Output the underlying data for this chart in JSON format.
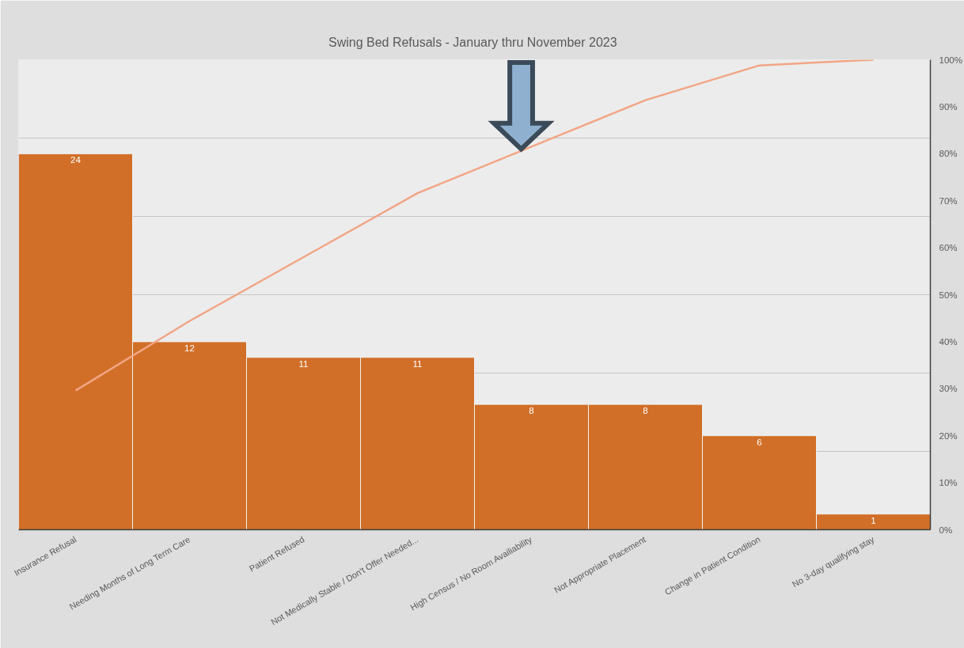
{
  "chart_data": {
    "type": "bar",
    "title": "Swing Bed Refusals  - January thru November 2023",
    "categories": [
      "Insurance Refusal",
      "Needing Months of Long Term Care",
      "Patient Refused",
      "Not Medically Stable / Don't Offer Needed...",
      "High Census / No Room Availiability",
      "Not Appropriate Placement",
      "Change in Patient Condition",
      "No 3-day qualifying stay"
    ],
    "series": [
      {
        "color": "#d16f28",
        "values": [
          24,
          12,
          11,
          11,
          8,
          8,
          6,
          1
        ],
        "value_labels": [
          "24",
          "12",
          "11",
          "11",
          "8",
          "8",
          "6",
          "1"
        ]
      },
      {
        "type": "line",
        "axis": "y2",
        "color": "#f2a585",
        "values": [
          29.6,
          44.4,
          58.0,
          71.6,
          81.5,
          91.4,
          98.8,
          100
        ]
      }
    ],
    "ylim": [
      0,
      30
    ],
    "yticks": [
      {
        "value": 0,
        "label": null
      },
      {
        "value": 5,
        "label": null
      },
      {
        "value": 10,
        "label": null
      },
      {
        "value": 15,
        "label": null
      },
      {
        "value": 20,
        "label": null
      },
      {
        "value": 25,
        "label": null
      },
      {
        "value": 30,
        "label": null
      }
    ],
    "y2lim": [
      0,
      100
    ],
    "y2ticks": [
      {
        "value": 0,
        "label": "0%"
      },
      {
        "value": 10,
        "label": "10%"
      },
      {
        "value": 20,
        "label": "20%"
      },
      {
        "value": 30,
        "label": "30%"
      },
      {
        "value": 40,
        "label": "40%"
      },
      {
        "value": 50,
        "label": "50%"
      },
      {
        "value": 60,
        "label": "60%"
      },
      {
        "value": 70,
        "label": "70%"
      },
      {
        "value": 80,
        "label": "80%"
      },
      {
        "value": 90,
        "label": "90%"
      },
      {
        "value": 100,
        "label": "100%"
      }
    ],
    "grid": "y"
  }
}
